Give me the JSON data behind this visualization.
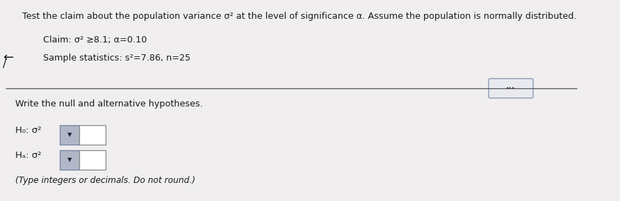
{
  "title_line": "Test the claim about the population variance σ² at the level of significance α. Assume the population is normally distributed.",
  "claim_line": "Claim: σ² ≥8.1; α=0.10",
  "sample_line": "Sample statistics: s²=7.86, n=25",
  "instruction": "Write the null and alternative hypotheses.",
  "h0_label": "H₀: σ²",
  "ha_label": "Hₐ: σ²",
  "footer": "(Type integers or decimals. Do not round.)",
  "bg_color": "#f0eeee",
  "text_color": "#1a1a1a",
  "line_color": "#555555",
  "dropdown_color": "#b0b8c8",
  "dropdown_border": "#7080a0",
  "answer_box_color": "#ffffff",
  "answer_box_border": "#888888",
  "btn_color": "#e8eaf0",
  "btn_border": "#8090b0"
}
